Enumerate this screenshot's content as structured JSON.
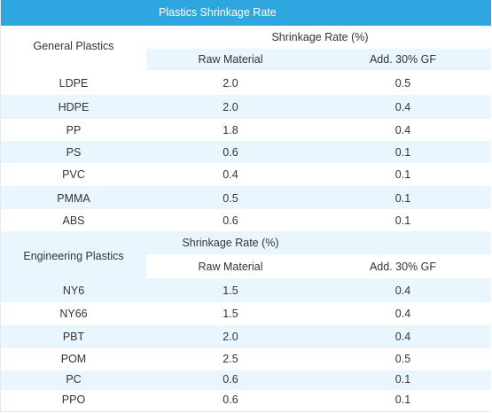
{
  "title": "Plastics Shrinkage Rate",
  "sections": [
    {
      "name": "General Plastics",
      "group_header": "Shrinkage Rate (%)",
      "col_raw": "Raw Material",
      "col_gf": "Add. 30% GF",
      "rows": [
        {
          "material": "LDPE",
          "raw": "2.0",
          "gf": "0.5"
        },
        {
          "material": "HDPE",
          "raw": "2.0",
          "gf": "0.4"
        },
        {
          "material": "PP",
          "raw": "1.8",
          "gf": "0.4"
        },
        {
          "material": "PS",
          "raw": "0.6",
          "gf": "0.1"
        },
        {
          "material": "PVC",
          "raw": "0.4",
          "gf": "0.1"
        },
        {
          "material": "PMMA",
          "raw": "0.5",
          "gf": "0.1"
        },
        {
          "material": "ABS",
          "raw": "0.6",
          "gf": "0.1"
        }
      ]
    },
    {
      "name": "Engineering Plastics",
      "group_header": "Shrinkage Rate (%)",
      "col_raw": "Raw Material",
      "col_gf": "Add. 30% GF",
      "rows": [
        {
          "material": "NY6",
          "raw": "1.5",
          "gf": "0.4"
        },
        {
          "material": "NY66",
          "raw": "1.5",
          "gf": "0.4"
        },
        {
          "material": "PBT",
          "raw": "2.0",
          "gf": "0.4"
        },
        {
          "material": "POM",
          "raw": "2.5",
          "gf": "0.5"
        },
        {
          "material": "PC",
          "raw": "0.6",
          "gf": "0.1"
        },
        {
          "material": "PPO",
          "raw": "0.6",
          "gf": "0.1"
        }
      ]
    }
  ]
}
